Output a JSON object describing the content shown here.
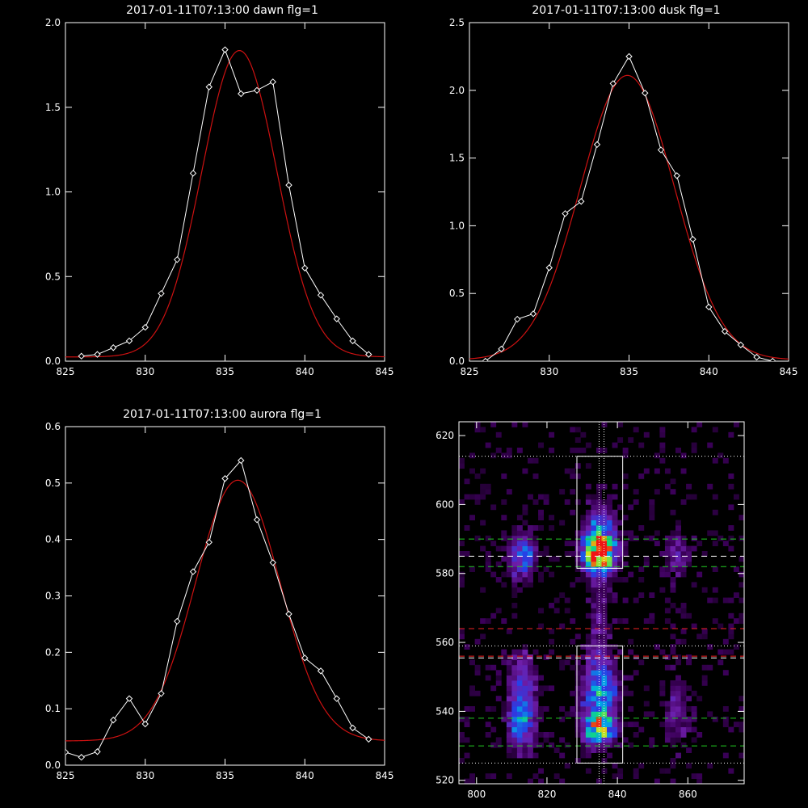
{
  "colors": {
    "background": "#000000",
    "data_line": "#ffffff",
    "fit_line": "#cc1111",
    "green_dash": "#22cc22",
    "red_dash": "#ee2222",
    "white_dash": "#ffffff"
  },
  "chart_data": [
    {
      "id": "dawn",
      "type": "line",
      "title": "2017-01-11T07:13:00 dawn flg=1",
      "xlim": [
        825,
        845
      ],
      "ylim": [
        0,
        2.0
      ],
      "xticks": [
        825,
        830,
        835,
        840,
        845
      ],
      "xtick_labels": [
        "825",
        "830",
        "835",
        "840",
        "845"
      ],
      "yticks": [
        0,
        0.5,
        1.0,
        1.5,
        2.0
      ],
      "ytick_labels": [
        "0.0",
        "0.5",
        "1.0",
        "1.5",
        "2.0"
      ],
      "series": [
        {
          "style": "data",
          "marker": "diamond",
          "x": [
            826,
            827,
            828,
            829,
            830,
            831,
            832,
            833,
            834,
            835,
            836,
            837,
            838,
            839,
            840,
            841,
            842,
            843,
            844
          ],
          "y": [
            0.03,
            0.04,
            0.08,
            0.12,
            0.2,
            0.4,
            0.6,
            1.11,
            1.62,
            1.84,
            1.58,
            1.6,
            1.65,
            1.04,
            0.55,
            0.39,
            0.25,
            0.12,
            0.04
          ]
        },
        {
          "style": "fit",
          "gauss": {
            "amp": 1.81,
            "center": 835.9,
            "sigma": 2.35,
            "offset": 0.025
          }
        }
      ]
    },
    {
      "id": "dusk",
      "type": "line",
      "title": "2017-01-11T07:13:00 dusk flg=1",
      "xlim": [
        825,
        845
      ],
      "ylim": [
        0,
        2.5
      ],
      "xticks": [
        825,
        830,
        835,
        840,
        845
      ],
      "xtick_labels": [
        "825",
        "830",
        "835",
        "840",
        "845"
      ],
      "yticks": [
        0,
        0.5,
        1.0,
        1.5,
        2.0,
        2.5
      ],
      "ytick_labels": [
        "0.0",
        "0.5",
        "1.0",
        "1.5",
        "2.0",
        "2.5"
      ],
      "series": [
        {
          "style": "data",
          "marker": "diamond",
          "x": [
            826,
            827,
            828,
            829,
            830,
            831,
            832,
            833,
            834,
            835,
            836,
            837,
            838,
            839,
            840,
            841,
            842,
            843,
            844
          ],
          "y": [
            0.0,
            0.09,
            0.31,
            0.35,
            0.69,
            1.09,
            1.18,
            1.6,
            2.05,
            2.25,
            1.98,
            1.56,
            1.37,
            0.9,
            0.4,
            0.22,
            0.12,
            0.03,
            0.0
          ]
        },
        {
          "style": "fit",
          "gauss": {
            "amp": 2.1,
            "center": 834.9,
            "sigma": 2.95,
            "offset": 0.01
          }
        }
      ]
    },
    {
      "id": "aurora",
      "type": "line",
      "title": "2017-01-11T07:13:00 aurora flg=1",
      "xlim": [
        825,
        845
      ],
      "ylim": [
        0,
        0.6
      ],
      "xticks": [
        825,
        830,
        835,
        840,
        845
      ],
      "xtick_labels": [
        "825",
        "830",
        "835",
        "840",
        "845"
      ],
      "yticks": [
        0,
        0.1,
        0.2,
        0.3,
        0.4,
        0.5,
        0.6
      ],
      "ytick_labels": [
        "0.0",
        "0.1",
        "0.2",
        "0.3",
        "0.4",
        "0.5",
        "0.6"
      ],
      "series": [
        {
          "style": "data",
          "marker": "diamond",
          "x": [
            825,
            826,
            827,
            828,
            829,
            830,
            831,
            832,
            833,
            834,
            835,
            836,
            837,
            838,
            839,
            840,
            841,
            842,
            843,
            844
          ],
          "y": [
            0.023,
            0.014,
            0.024,
            0.08,
            0.118,
            0.073,
            0.127,
            0.255,
            0.343,
            0.395,
            0.508,
            0.54,
            0.435,
            0.359,
            0.268,
            0.19,
            0.167,
            0.118,
            0.066,
            0.046
          ]
        },
        {
          "style": "fit",
          "gauss": {
            "amp": 0.462,
            "center": 835.8,
            "sigma": 2.65,
            "offset": 0.043
          }
        }
      ]
    },
    {
      "id": "image",
      "type": "heatmap",
      "title": "",
      "xlim": [
        795,
        876
      ],
      "ylim": [
        519,
        624
      ],
      "xticks": [
        800,
        820,
        840,
        860
      ],
      "xtick_labels": [
        "800",
        "820",
        "840",
        "860"
      ],
      "yticks": [
        520,
        540,
        560,
        580,
        600,
        620
      ],
      "ytick_labels": [
        "520",
        "540",
        "560",
        "580",
        "600",
        "620"
      ],
      "blobs": [
        {
          "x": 835,
          "y": 586,
          "sx": 3.2,
          "sy": 3.5,
          "amp": 1.0
        },
        {
          "x": 835,
          "y": 591,
          "sx": 3.0,
          "sy": 6.0,
          "amp": 0.45
        },
        {
          "x": 835,
          "y": 535,
          "sx": 3.0,
          "sy": 3.0,
          "amp": 0.85
        },
        {
          "x": 835,
          "y": 546,
          "sx": 3.5,
          "sy": 6.5,
          "amp": 0.6
        },
        {
          "x": 835,
          "y": 570,
          "sx": 2.2,
          "sy": 12.0,
          "amp": 0.18
        },
        {
          "x": 813,
          "y": 585,
          "sx": 2.6,
          "sy": 4.5,
          "amp": 0.5
        },
        {
          "x": 813,
          "y": 537,
          "sx": 2.6,
          "sy": 5.5,
          "amp": 0.55
        },
        {
          "x": 813,
          "y": 550,
          "sx": 3.0,
          "sy": 6.0,
          "amp": 0.28
        },
        {
          "x": 857,
          "y": 586,
          "sx": 2.5,
          "sy": 5.0,
          "amp": 0.24
        },
        {
          "x": 857,
          "y": 540,
          "sx": 2.5,
          "sy": 7.0,
          "amp": 0.22
        }
      ],
      "boxes": [
        {
          "x0": 828.5,
          "x1": 841.5,
          "y0": 581.5,
          "y1": 614
        },
        {
          "x0": 828.5,
          "x1": 841.5,
          "y0": 525,
          "y1": 559
        }
      ],
      "vlines": [
        {
          "x": 834.8,
          "style": "dotted"
        },
        {
          "x": 836.2,
          "style": "dotted"
        }
      ],
      "hlines": [
        {
          "y": 614,
          "color": "white",
          "style": "dotted"
        },
        {
          "y": 590,
          "color": "green",
          "style": "dashed"
        },
        {
          "y": 585,
          "color": "white",
          "style": "dashed"
        },
        {
          "y": 582,
          "color": "green",
          "style": "dashed"
        },
        {
          "y": 564,
          "color": "red",
          "style": "dashed"
        },
        {
          "y": 559,
          "color": "white",
          "style": "dotted"
        },
        {
          "y": 556,
          "color": "red",
          "style": "dashed"
        },
        {
          "y": 555.5,
          "color": "white",
          "style": "dashed"
        },
        {
          "y": 538,
          "color": "green",
          "style": "dashed"
        },
        {
          "y": 530,
          "color": "green",
          "style": "dashed"
        },
        {
          "y": 525,
          "color": "white",
          "style": "dotted"
        }
      ]
    }
  ]
}
